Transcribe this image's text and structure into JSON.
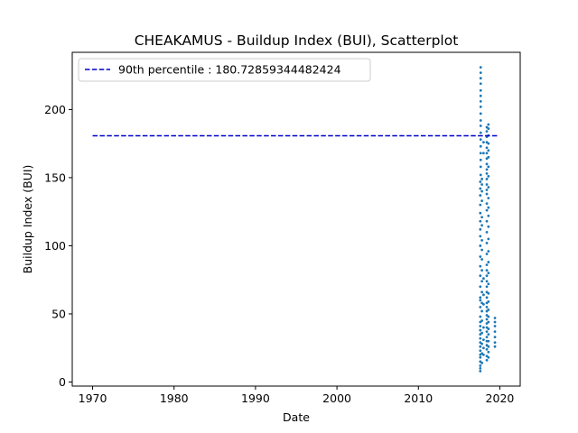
{
  "chart_data": {
    "type": "scatter",
    "title": "CHEAKAMUS - Buildup Index (BUI), Scatterplot",
    "xlabel": "Date",
    "ylabel": "Buildup Index (BUI)",
    "xlim": [
      1967.5,
      2022.5
    ],
    "ylim": [
      -3,
      242
    ],
    "x_ticks": [
      1970,
      1980,
      1990,
      2000,
      2010,
      2020
    ],
    "x_tick_labels": [
      "1970",
      "1980",
      "1990",
      "2000",
      "2010",
      "2020"
    ],
    "y_ticks": [
      0,
      50,
      100,
      150,
      200
    ],
    "y_tick_labels": [
      "0",
      "50",
      "100",
      "150",
      "200"
    ],
    "grid": false,
    "legend": {
      "placement": "top-left",
      "entries": [
        {
          "label": "90th percentile : 180.72859344482424",
          "style": "dashed",
          "color": "#0000cc"
        }
      ]
    },
    "reference_lines": [
      {
        "label": "90th percentile : 180.72859344482424",
        "y": 180.72859344482424,
        "x_from": 1970.0,
        "x_to": 2019.8,
        "color": "#0000cc",
        "style": "dashed"
      }
    ],
    "series": [
      {
        "marker_color": "#1f77b4",
        "points": [
          [
            2017.6,
            8
          ],
          [
            2017.6,
            10
          ],
          [
            2017.6,
            12
          ],
          [
            2017.6,
            15
          ],
          [
            2017.6,
            18
          ],
          [
            2017.6,
            20
          ],
          [
            2017.6,
            23
          ],
          [
            2017.6,
            26
          ],
          [
            2017.6,
            29
          ],
          [
            2017.6,
            32
          ],
          [
            2017.6,
            35
          ],
          [
            2017.6,
            38
          ],
          [
            2017.6,
            41
          ],
          [
            2017.6,
            44
          ],
          [
            2017.6,
            48
          ],
          [
            2017.6,
            55
          ],
          [
            2017.6,
            60
          ],
          [
            2017.6,
            62
          ],
          [
            2017.6,
            70
          ],
          [
            2017.6,
            78
          ],
          [
            2017.6,
            85
          ],
          [
            2017.6,
            92
          ],
          [
            2017.6,
            100
          ],
          [
            2017.6,
            107
          ],
          [
            2017.6,
            112
          ],
          [
            2017.6,
            118
          ],
          [
            2017.6,
            124
          ],
          [
            2017.6,
            130
          ],
          [
            2017.6,
            137
          ],
          [
            2017.6,
            142
          ],
          [
            2017.6,
            147
          ],
          [
            2017.65,
            152
          ],
          [
            2017.65,
            158
          ],
          [
            2017.65,
            163
          ],
          [
            2017.65,
            168
          ],
          [
            2017.65,
            173
          ],
          [
            2017.65,
            178
          ],
          [
            2017.65,
            183
          ],
          [
            2017.65,
            188
          ],
          [
            2017.65,
            192
          ],
          [
            2017.65,
            197
          ],
          [
            2017.65,
            202
          ],
          [
            2017.65,
            206
          ],
          [
            2017.65,
            210
          ],
          [
            2017.65,
            214
          ],
          [
            2017.65,
            219
          ],
          [
            2017.65,
            223
          ],
          [
            2017.65,
            227
          ],
          [
            2017.65,
            231
          ],
          [
            2017.8,
            14
          ],
          [
            2017.8,
            21
          ],
          [
            2017.8,
            28
          ],
          [
            2017.8,
            36
          ],
          [
            2017.8,
            45
          ],
          [
            2017.8,
            52
          ],
          [
            2017.8,
            58
          ],
          [
            2017.8,
            66
          ],
          [
            2017.8,
            74
          ],
          [
            2017.8,
            82
          ],
          [
            2017.8,
            90
          ],
          [
            2017.8,
            97
          ],
          [
            2017.8,
            104
          ],
          [
            2017.8,
            115
          ],
          [
            2017.8,
            121
          ],
          [
            2017.8,
            133
          ],
          [
            2017.8,
            140
          ],
          [
            2017.8,
            145
          ],
          [
            2017.8,
            149
          ],
          [
            2018.0,
            20
          ],
          [
            2018.0,
            25
          ],
          [
            2018.0,
            31
          ],
          [
            2018.0,
            40
          ],
          [
            2018.0,
            57
          ],
          [
            2018.0,
            64
          ],
          [
            2018.0,
            76
          ],
          [
            2018.0,
            168
          ],
          [
            2018.0,
            176
          ],
          [
            2018.4,
            16
          ],
          [
            2018.4,
            19
          ],
          [
            2018.4,
            24
          ],
          [
            2018.4,
            27
          ],
          [
            2018.4,
            30
          ],
          [
            2018.4,
            33
          ],
          [
            2018.4,
            37
          ],
          [
            2018.4,
            40
          ],
          [
            2018.4,
            43
          ],
          [
            2018.4,
            46
          ],
          [
            2018.4,
            49
          ],
          [
            2018.4,
            52
          ],
          [
            2018.4,
            55
          ],
          [
            2018.4,
            58
          ],
          [
            2018.4,
            62
          ],
          [
            2018.4,
            66
          ],
          [
            2018.4,
            70
          ],
          [
            2018.4,
            74
          ],
          [
            2018.4,
            78
          ],
          [
            2018.4,
            82
          ],
          [
            2018.4,
            86
          ],
          [
            2018.4,
            94
          ],
          [
            2018.4,
            102
          ],
          [
            2018.4,
            110
          ],
          [
            2018.4,
            118
          ],
          [
            2018.4,
            126
          ],
          [
            2018.4,
            131
          ],
          [
            2018.4,
            138
          ],
          [
            2018.4,
            141
          ],
          [
            2018.4,
            145
          ],
          [
            2018.4,
            149
          ],
          [
            2018.4,
            153
          ],
          [
            2018.4,
            156
          ],
          [
            2018.4,
            160
          ],
          [
            2018.4,
            164
          ],
          [
            2018.4,
            168
          ],
          [
            2018.4,
            172
          ],
          [
            2018.4,
            176
          ],
          [
            2018.4,
            180
          ],
          [
            2018.4,
            184
          ],
          [
            2018.4,
            187
          ],
          [
            2018.6,
            18
          ],
          [
            2018.6,
            22
          ],
          [
            2018.6,
            26
          ],
          [
            2018.6,
            30
          ],
          [
            2018.6,
            35
          ],
          [
            2018.6,
            39
          ],
          [
            2018.6,
            44
          ],
          [
            2018.6,
            48
          ],
          [
            2018.6,
            53
          ],
          [
            2018.6,
            59
          ],
          [
            2018.6,
            65
          ],
          [
            2018.6,
            72
          ],
          [
            2018.6,
            80
          ],
          [
            2018.6,
            88
          ],
          [
            2018.6,
            96
          ],
          [
            2018.6,
            105
          ],
          [
            2018.6,
            114
          ],
          [
            2018.6,
            122
          ],
          [
            2018.6,
            128
          ],
          [
            2018.6,
            135
          ],
          [
            2018.6,
            143
          ],
          [
            2018.6,
            151
          ],
          [
            2018.6,
            158
          ],
          [
            2018.6,
            165
          ],
          [
            2018.6,
            170
          ],
          [
            2018.6,
            175
          ],
          [
            2018.6,
            181
          ],
          [
            2018.6,
            186
          ],
          [
            2018.6,
            189
          ],
          [
            2019.4,
            26
          ],
          [
            2019.4,
            29
          ],
          [
            2019.4,
            33
          ],
          [
            2019.4,
            37
          ],
          [
            2019.4,
            41
          ],
          [
            2019.4,
            44
          ],
          [
            2019.4,
            47
          ]
        ]
      }
    ]
  }
}
